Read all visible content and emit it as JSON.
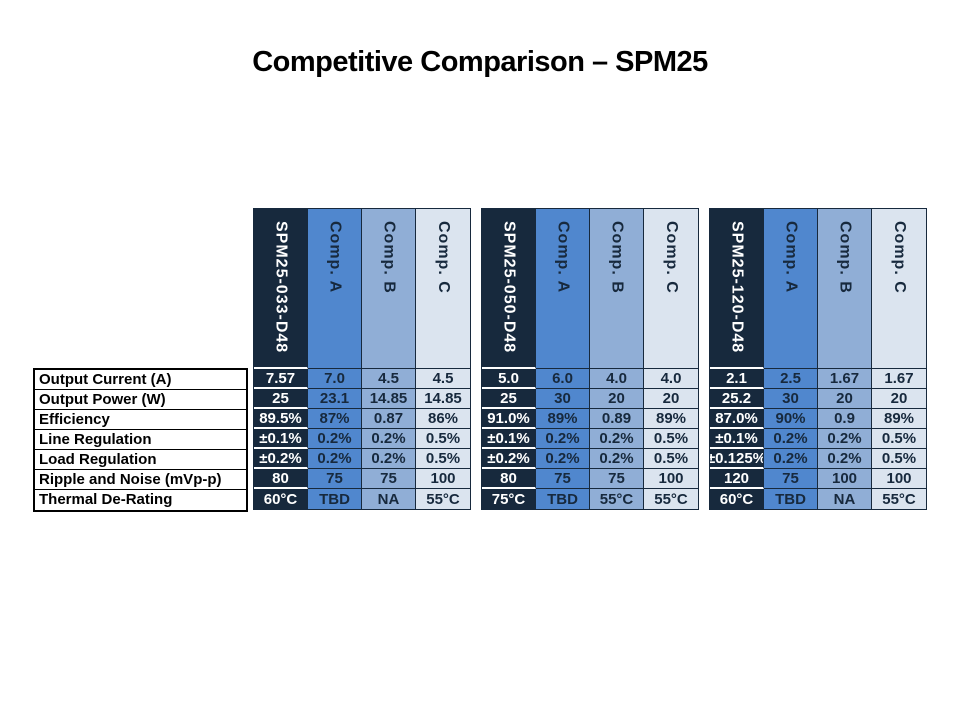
{
  "slide": {
    "title": "Competitive Comparison – SPM25"
  },
  "colors": {
    "product_navy": "#17293D",
    "comp_a_blue": "#5087CE",
    "comp_b_blue": "#90AED6",
    "comp_c_blue": "#DBE4EF",
    "label_text": "#000000"
  },
  "row_labels": [
    "Output Current (A)",
    "Output Power (W)",
    "Efficiency",
    "Line Regulation",
    "Load Regulation",
    "Ripple and Noise (mVp-p)",
    "Thermal De-Rating"
  ],
  "tables": [
    {
      "product": "SPM25-033-D48",
      "competitors": [
        "Comp. A",
        "Comp. B",
        "Comp. C"
      ],
      "rows": [
        [
          "7.57",
          "7.0",
          "4.5",
          "4.5"
        ],
        [
          "25",
          "23.1",
          "14.85",
          "14.85"
        ],
        [
          "89.5%",
          "87%",
          "0.87",
          "86%"
        ],
        [
          "±0.1%",
          "0.2%",
          "0.2%",
          "0.5%"
        ],
        [
          "±0.2%",
          "0.2%",
          "0.2%",
          "0.5%"
        ],
        [
          "80",
          "75",
          "75",
          "100"
        ],
        [
          "60°C",
          "TBD",
          "NA",
          "55°C"
        ]
      ]
    },
    {
      "product": "SPM25-050-D48",
      "competitors": [
        "Comp. A",
        "Comp. B",
        "Comp. C"
      ],
      "rows": [
        [
          "5.0",
          "6.0",
          "4.0",
          "4.0"
        ],
        [
          "25",
          "30",
          "20",
          "20"
        ],
        [
          "91.0%",
          "89%",
          "0.89",
          "89%"
        ],
        [
          "±0.1%",
          "0.2%",
          "0.2%",
          "0.5%"
        ],
        [
          "±0.2%",
          "0.2%",
          "0.2%",
          "0.5%"
        ],
        [
          "80",
          "75",
          "75",
          "100"
        ],
        [
          "75°C",
          "TBD",
          "55°C",
          "55°C"
        ]
      ]
    },
    {
      "product": "SPM25-120-D48",
      "competitors": [
        "Comp. A",
        "Comp. B",
        "Comp. C"
      ],
      "rows": [
        [
          "2.1",
          "2.5",
          "1.67",
          "1.67"
        ],
        [
          "25.2",
          "30",
          "20",
          "20"
        ],
        [
          "87.0%",
          "90%",
          "0.9",
          "89%"
        ],
        [
          "±0.1%",
          "0.2%",
          "0.2%",
          "0.5%"
        ],
        [
          "±0.125%",
          "0.2%",
          "0.2%",
          "0.5%"
        ],
        [
          "120",
          "75",
          "100",
          "100"
        ],
        [
          "60°C",
          "TBD",
          "NA",
          "55°C"
        ]
      ]
    }
  ]
}
